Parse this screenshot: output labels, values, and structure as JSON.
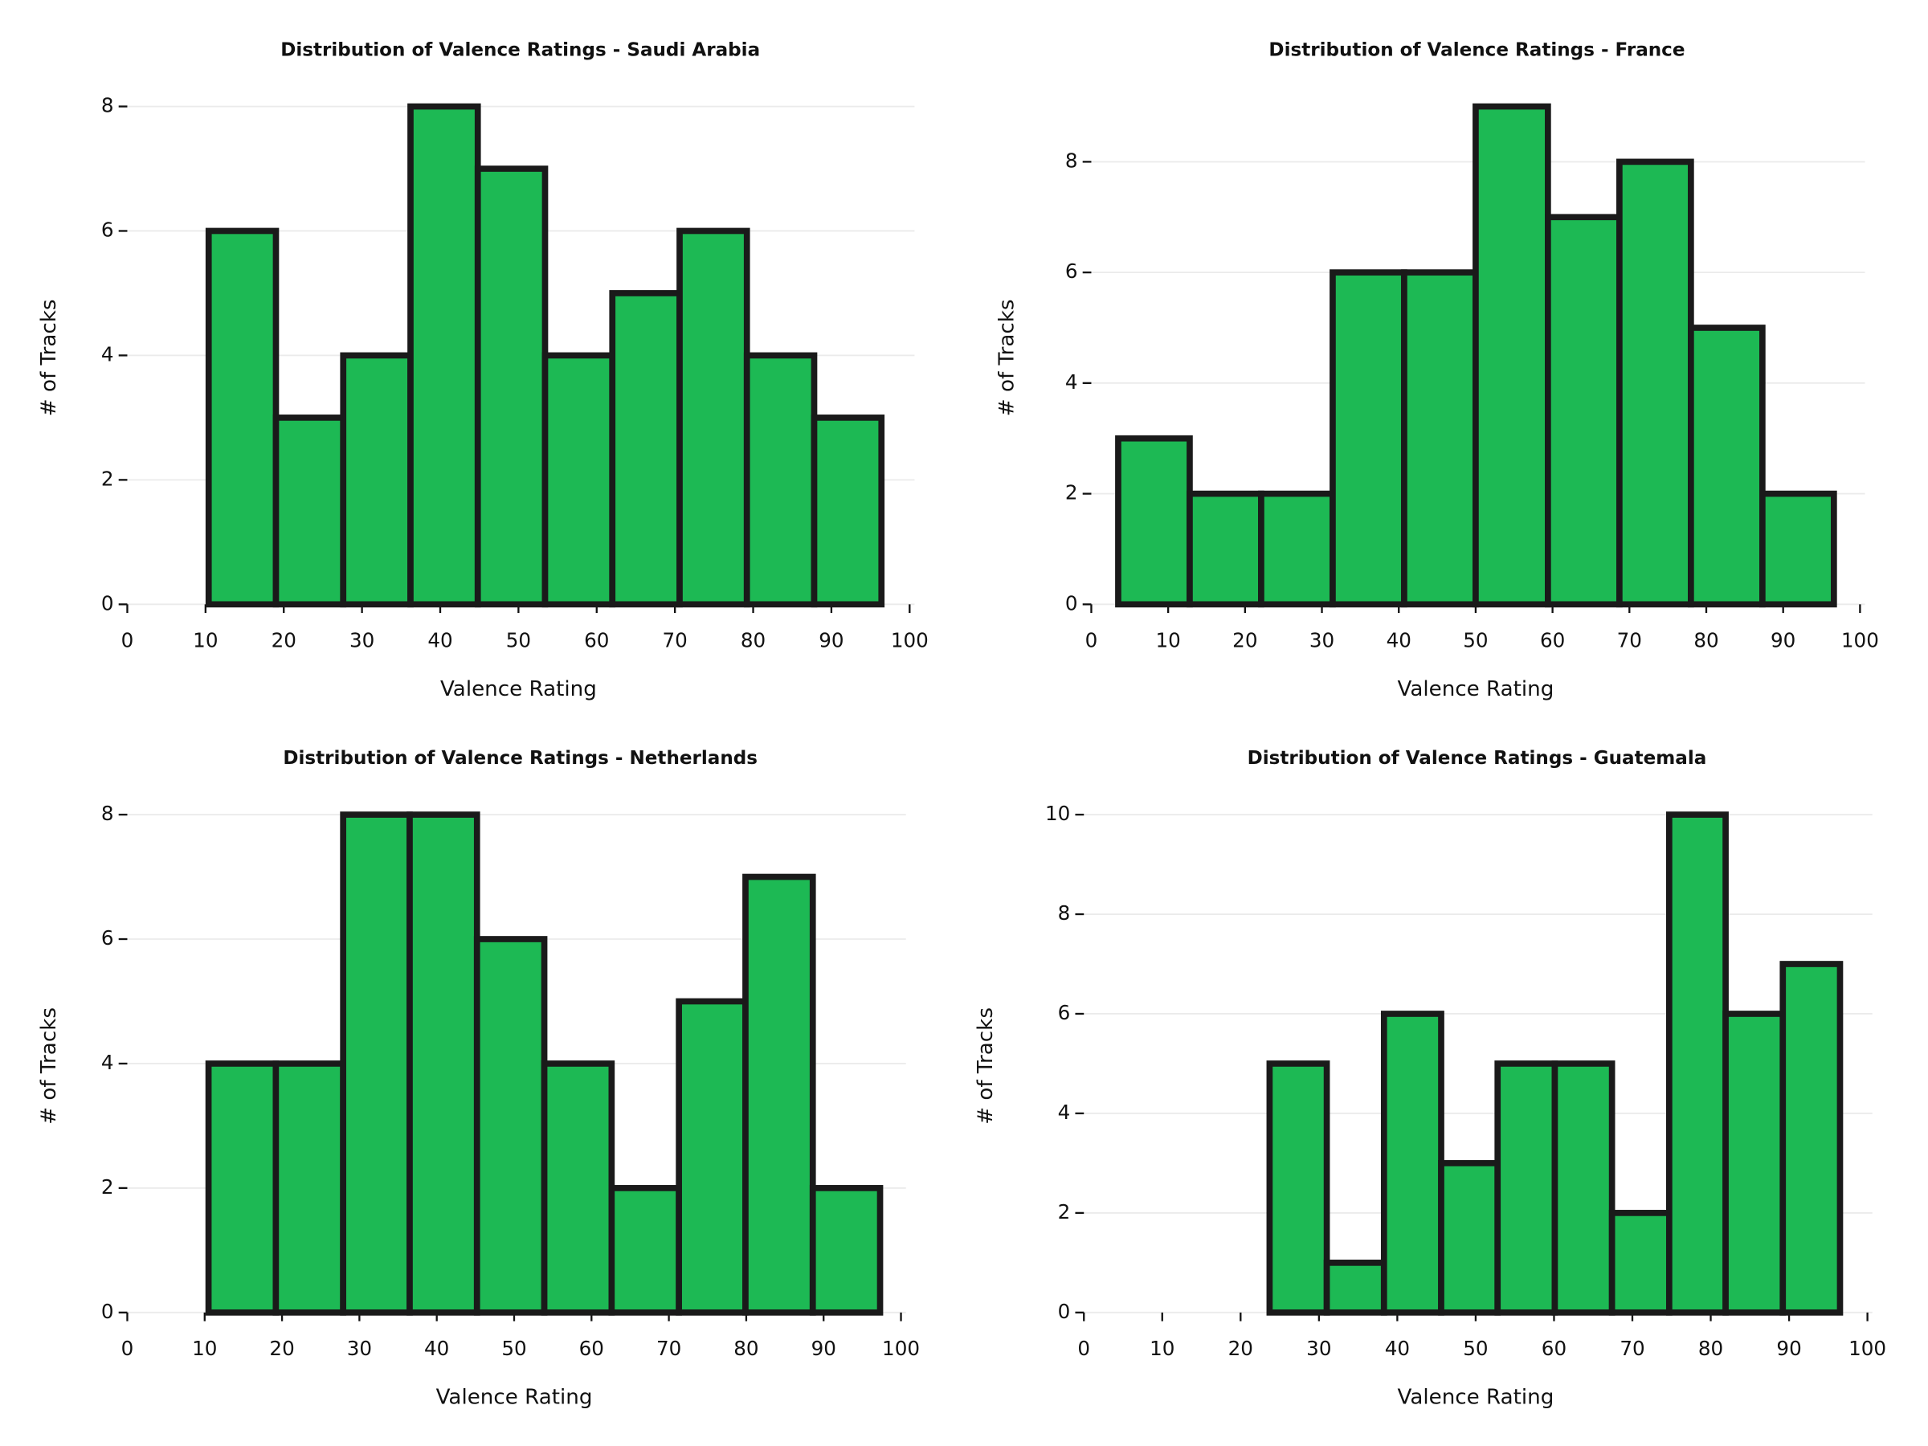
{
  "chart_data": [
    {
      "type": "histogram",
      "title": "Distribution of Valence Ratings - Saudi Arabia",
      "xlabel": "Valence Rating",
      "ylabel": "# of Tracks",
      "bins": [
        10.4,
        19.0,
        27.6,
        36.2,
        44.8,
        53.4,
        62.0,
        70.6,
        79.2,
        87.8,
        96.4
      ],
      "counts": [
        6,
        3,
        4,
        8,
        7,
        4,
        5,
        6,
        4,
        3
      ],
      "color": "#1db954",
      "edgecolor": "#1a1a1a",
      "xlim": [
        0,
        100
      ],
      "ylim": [
        0,
        8.4
      ],
      "xticks": [
        0,
        10,
        20,
        30,
        40,
        50,
        60,
        70,
        80,
        90,
        100
      ],
      "yticks": [
        0,
        2,
        4,
        6,
        8
      ],
      "grid": true
    },
    {
      "type": "histogram",
      "title": "Distribution of Valence Ratings - France",
      "xlabel": "Valence Rating",
      "ylabel": "# of Tracks",
      "bins": [
        3.5,
        12.8,
        22.1,
        31.4,
        40.7,
        50.0,
        59.4,
        68.7,
        78.0,
        87.3,
        96.6
      ],
      "counts": [
        3,
        2,
        2,
        6,
        6,
        9,
        7,
        8,
        5,
        2
      ],
      "color": "#1db954",
      "edgecolor": "#1a1a1a",
      "xlim": [
        0,
        100
      ],
      "ylim": [
        0,
        9.45
      ],
      "xticks": [
        0,
        10,
        20,
        30,
        40,
        50,
        60,
        70,
        80,
        90,
        100
      ],
      "yticks": [
        0,
        2,
        4,
        6,
        8
      ],
      "grid": true
    },
    {
      "type": "histogram",
      "title": "Distribution of Valence Ratings - Netherlands",
      "xlabel": "Valence Rating",
      "ylabel": "# of Tracks",
      "bins": [
        10.5,
        19.2,
        27.9,
        36.5,
        45.2,
        53.9,
        62.6,
        71.3,
        79.9,
        88.6,
        97.3
      ],
      "counts": [
        4,
        4,
        8,
        8,
        6,
        4,
        2,
        5,
        7,
        2
      ],
      "color": "#1db954",
      "edgecolor": "#1a1a1a",
      "xlim": [
        0,
        100
      ],
      "ylim": [
        0,
        8.4
      ],
      "xticks": [
        0,
        10,
        20,
        30,
        40,
        50,
        60,
        70,
        80,
        90,
        100
      ],
      "yticks": [
        0,
        2,
        4,
        6,
        8
      ],
      "grid": true
    },
    {
      "type": "histogram",
      "title": "Distribution of Valence Ratings - Guatemala",
      "xlabel": "Valence Rating",
      "ylabel": "# of Tracks",
      "bins": [
        23.7,
        31.0,
        38.3,
        45.6,
        52.8,
        60.1,
        67.4,
        74.7,
        81.9,
        89.2,
        96.5
      ],
      "counts": [
        5,
        1,
        6,
        3,
        5,
        5,
        2,
        10,
        6,
        7
      ],
      "color": "#1db954",
      "edgecolor": "#1a1a1a",
      "xlim": [
        0,
        100
      ],
      "ylim": [
        0,
        10.5
      ],
      "xticks": [
        0,
        10,
        20,
        30,
        40,
        50,
        60,
        70,
        80,
        90,
        100
      ],
      "yticks": [
        0,
        2,
        4,
        6,
        8,
        10
      ],
      "grid": true
    }
  ]
}
